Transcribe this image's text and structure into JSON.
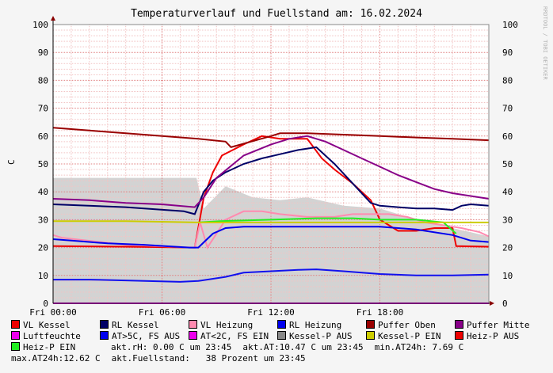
{
  "chart_data": {
    "type": "line",
    "title": "Temperaturverlauf und Fuellstand am: 16.02.2024",
    "ylabel": "C",
    "watermark": "RRDTOOL / TOBI OETIKER",
    "ylim": [
      0,
      100
    ],
    "xlim": [
      0,
      24
    ],
    "x_unit": "hours",
    "y_ticks": [
      0,
      10,
      20,
      30,
      40,
      50,
      60,
      70,
      80,
      90,
      100
    ],
    "x_ticks": [
      {
        "value": 0,
        "label": "Fri 00:00"
      },
      {
        "value": 6,
        "label": "Fri 06:00"
      },
      {
        "value": 12,
        "label": "Fri 12:00"
      },
      {
        "value": 18,
        "label": "Fri 18:00"
      }
    ],
    "grid": true,
    "area_series": {
      "name": "Luftfeuchte",
      "color": "#d3d3d3",
      "x": [
        0,
        4.5,
        7.9,
        8.3,
        9.5,
        11,
        12.5,
        14,
        16,
        18,
        20,
        22,
        24
      ],
      "values": [
        45,
        45,
        45,
        34,
        42,
        38,
        37,
        38,
        35,
        34,
        30,
        27,
        24
      ]
    },
    "series": [
      {
        "name": "VL Kessel",
        "color": "#ee0000",
        "x": [
          0,
          4,
          7.8,
          8.3,
          8.8,
          9.3,
          10.5,
          11.5,
          12.5,
          14,
          14.8,
          15.5,
          16.5,
          17.5,
          18,
          19,
          20,
          21,
          22,
          22.2,
          24
        ],
        "values": [
          20.5,
          20.3,
          20,
          38,
          47,
          53,
          57,
          60,
          59,
          59,
          52,
          48,
          43,
          37,
          30,
          26,
          26,
          27,
          27,
          20.5,
          20.3
        ]
      },
      {
        "name": "RL Kessel",
        "color": "#000066",
        "x": [
          0,
          4,
          7.2,
          7.8,
          8.3,
          8.8,
          9.5,
          10.5,
          11.5,
          12.5,
          13.5,
          14.5,
          15.5,
          16.5,
          17.5,
          18,
          19,
          20,
          21,
          22,
          22.5,
          23,
          24
        ],
        "values": [
          35.5,
          34.5,
          33,
          32,
          40,
          44,
          47,
          50,
          52,
          53.5,
          55,
          56,
          50,
          43,
          36,
          35,
          34.5,
          34,
          34,
          33.5,
          35,
          35.5,
          35
        ]
      },
      {
        "name": "VL Heizung",
        "color": "#ff8ab0",
        "x": [
          0,
          0.5,
          4,
          7.8,
          8.1,
          8.5,
          9.5,
          10.5,
          11.5,
          12.5,
          14,
          15.5,
          16.5,
          17.5,
          18.5,
          19.5,
          20.5,
          21.5,
          22.5,
          23.5,
          24
        ],
        "values": [
          24.5,
          23.5,
          21,
          20,
          29,
          20,
          30,
          33,
          33,
          32,
          31,
          31,
          32,
          32,
          32,
          31,
          29,
          28,
          27,
          25.5,
          24
        ]
      },
      {
        "name": "RL Heizung",
        "color": "#0000ee",
        "x": [
          0,
          1,
          3,
          5,
          7.5,
          8,
          8.8,
          9.5,
          10.5,
          12,
          14,
          16,
          18,
          20,
          22,
          23,
          24
        ],
        "values": [
          23,
          22.5,
          21.5,
          21,
          20,
          20,
          25,
          27,
          27.5,
          27.5,
          27.5,
          27.5,
          27.5,
          26.5,
          24.5,
          22.5,
          22
        ]
      },
      {
        "name": "Puffer Oben",
        "color": "#990000",
        "x": [
          0,
          2,
          4,
          6,
          8,
          9.5,
          9.8,
          12,
          12.5,
          14,
          16,
          18,
          20,
          22,
          24
        ],
        "values": [
          63,
          62,
          61,
          60,
          59,
          58,
          56,
          60,
          61,
          61,
          60.5,
          60,
          59.5,
          59,
          58.5
        ]
      },
      {
        "name": "Puffer Mitte",
        "color": "#880088",
        "x": [
          0,
          2,
          4,
          6,
          7.8,
          8.3,
          9,
          10.5,
          12,
          13,
          14,
          15,
          16,
          17,
          18,
          19,
          20,
          21,
          22,
          23,
          24
        ],
        "values": [
          37.5,
          37,
          36,
          35.5,
          34.5,
          38,
          45,
          53,
          57,
          59,
          60,
          58,
          55,
          52,
          49,
          46,
          43.5,
          41,
          39.5,
          38.5,
          37.5
        ]
      },
      {
        "name": "Heiz-P EIN",
        "color": "#22ee22",
        "x": [
          8,
          9.2,
          12,
          14.5,
          16.5,
          18,
          20,
          21.5,
          22.2
        ],
        "values": [
          29,
          29.5,
          30,
          30.5,
          30.5,
          30,
          30,
          29,
          25
        ]
      },
      {
        "name": "Kessel-P EIN",
        "color": "#cccc00",
        "x": [
          0,
          4,
          8,
          10,
          14,
          18,
          21,
          22,
          24
        ],
        "values": [
          29.5,
          29.5,
          29,
          29,
          29,
          29,
          29,
          29,
          29
        ]
      },
      {
        "name": "Fuellstand",
        "color": "#1111ee",
        "x": [
          0,
          2,
          4,
          7,
          8,
          9.5,
          10.5,
          12,
          13.5,
          14.5,
          16,
          18,
          20,
          22,
          24
        ],
        "values": [
          8.5,
          8.5,
          8.2,
          7.7,
          8,
          9.5,
          11,
          11.5,
          12,
          12.2,
          11.5,
          10.5,
          10,
          10,
          10.3
        ]
      },
      {
        "name": "Baseline",
        "color": "#ee00ee",
        "x": [
          0,
          24
        ],
        "values": [
          0,
          0
        ]
      }
    ],
    "legend": [
      {
        "label": "VL Kessel",
        "color": "#ee0000"
      },
      {
        "label": "RL Kessel",
        "color": "#000066"
      },
      {
        "label": "VL Heizung",
        "color": "#ff8ab0"
      },
      {
        "label": "RL Heizung",
        "color": "#0000ee"
      },
      {
        "label": "Puffer Oben",
        "color": "#990000"
      },
      {
        "label": "Puffer Mitte",
        "color": "#880088"
      },
      {
        "label": "Luftfeuchte",
        "color": "#ee00ee"
      },
      {
        "label": "AT>5C, FS AUS",
        "color": "#0000ee"
      },
      {
        "label": "AT<2C, FS EIN",
        "color": "#ee00ee"
      },
      {
        "label": "Kessel-P AUS",
        "color": "#888888"
      },
      {
        "label": "Kessel-P EIN",
        "color": "#cccc00"
      },
      {
        "label": "Heiz-P AUS",
        "color": "#ee0000"
      },
      {
        "label": "Heiz-P EIN",
        "color": "#22ee22"
      }
    ],
    "stats": {
      "akt_rh": "akt.rH: 0.00 C um 23:45",
      "akt_at": "akt.AT:10.47 C um 23:45",
      "min_at": "min.AT24h: 7.69 C",
      "max_at": "max.AT24h:12.62 C",
      "fuellstand": "akt.Fuellstand:   38 Prozent um 23:45"
    }
  }
}
